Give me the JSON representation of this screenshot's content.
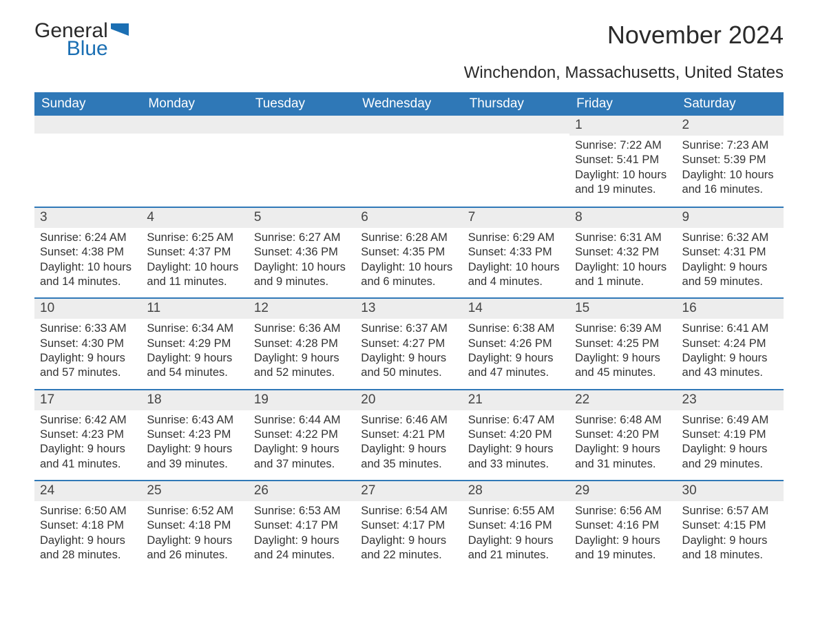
{
  "brand": {
    "name_part1": "General",
    "name_part2": "Blue",
    "logo_color": "#1b6fb3"
  },
  "title": "November 2024",
  "location": "Winchendon, Massachusetts, United States",
  "colors": {
    "header_bg": "#2f78b7",
    "header_text": "#ffffff",
    "row_border": "#2f78b7",
    "daynum_bg": "#ededed",
    "text": "#333333",
    "background": "#ffffff"
  },
  "typography": {
    "title_fontsize": 36,
    "location_fontsize": 24,
    "header_fontsize": 19,
    "daynum_fontsize": 19,
    "body_fontsize": 16.5
  },
  "day_headers": [
    "Sunday",
    "Monday",
    "Tuesday",
    "Wednesday",
    "Thursday",
    "Friday",
    "Saturday"
  ],
  "weeks": [
    [
      {
        "num": "",
        "sunrise": "",
        "sunset": "",
        "daylight": ""
      },
      {
        "num": "",
        "sunrise": "",
        "sunset": "",
        "daylight": ""
      },
      {
        "num": "",
        "sunrise": "",
        "sunset": "",
        "daylight": ""
      },
      {
        "num": "",
        "sunrise": "",
        "sunset": "",
        "daylight": ""
      },
      {
        "num": "",
        "sunrise": "",
        "sunset": "",
        "daylight": ""
      },
      {
        "num": "1",
        "sunrise": "Sunrise: 7:22 AM",
        "sunset": "Sunset: 5:41 PM",
        "daylight": "Daylight: 10 hours and 19 minutes."
      },
      {
        "num": "2",
        "sunrise": "Sunrise: 7:23 AM",
        "sunset": "Sunset: 5:39 PM",
        "daylight": "Daylight: 10 hours and 16 minutes."
      }
    ],
    [
      {
        "num": "3",
        "sunrise": "Sunrise: 6:24 AM",
        "sunset": "Sunset: 4:38 PM",
        "daylight": "Daylight: 10 hours and 14 minutes."
      },
      {
        "num": "4",
        "sunrise": "Sunrise: 6:25 AM",
        "sunset": "Sunset: 4:37 PM",
        "daylight": "Daylight: 10 hours and 11 minutes."
      },
      {
        "num": "5",
        "sunrise": "Sunrise: 6:27 AM",
        "sunset": "Sunset: 4:36 PM",
        "daylight": "Daylight: 10 hours and 9 minutes."
      },
      {
        "num": "6",
        "sunrise": "Sunrise: 6:28 AM",
        "sunset": "Sunset: 4:35 PM",
        "daylight": "Daylight: 10 hours and 6 minutes."
      },
      {
        "num": "7",
        "sunrise": "Sunrise: 6:29 AM",
        "sunset": "Sunset: 4:33 PM",
        "daylight": "Daylight: 10 hours and 4 minutes."
      },
      {
        "num": "8",
        "sunrise": "Sunrise: 6:31 AM",
        "sunset": "Sunset: 4:32 PM",
        "daylight": "Daylight: 10 hours and 1 minute."
      },
      {
        "num": "9",
        "sunrise": "Sunrise: 6:32 AM",
        "sunset": "Sunset: 4:31 PM",
        "daylight": "Daylight: 9 hours and 59 minutes."
      }
    ],
    [
      {
        "num": "10",
        "sunrise": "Sunrise: 6:33 AM",
        "sunset": "Sunset: 4:30 PM",
        "daylight": "Daylight: 9 hours and 57 minutes."
      },
      {
        "num": "11",
        "sunrise": "Sunrise: 6:34 AM",
        "sunset": "Sunset: 4:29 PM",
        "daylight": "Daylight: 9 hours and 54 minutes."
      },
      {
        "num": "12",
        "sunrise": "Sunrise: 6:36 AM",
        "sunset": "Sunset: 4:28 PM",
        "daylight": "Daylight: 9 hours and 52 minutes."
      },
      {
        "num": "13",
        "sunrise": "Sunrise: 6:37 AM",
        "sunset": "Sunset: 4:27 PM",
        "daylight": "Daylight: 9 hours and 50 minutes."
      },
      {
        "num": "14",
        "sunrise": "Sunrise: 6:38 AM",
        "sunset": "Sunset: 4:26 PM",
        "daylight": "Daylight: 9 hours and 47 minutes."
      },
      {
        "num": "15",
        "sunrise": "Sunrise: 6:39 AM",
        "sunset": "Sunset: 4:25 PM",
        "daylight": "Daylight: 9 hours and 45 minutes."
      },
      {
        "num": "16",
        "sunrise": "Sunrise: 6:41 AM",
        "sunset": "Sunset: 4:24 PM",
        "daylight": "Daylight: 9 hours and 43 minutes."
      }
    ],
    [
      {
        "num": "17",
        "sunrise": "Sunrise: 6:42 AM",
        "sunset": "Sunset: 4:23 PM",
        "daylight": "Daylight: 9 hours and 41 minutes."
      },
      {
        "num": "18",
        "sunrise": "Sunrise: 6:43 AM",
        "sunset": "Sunset: 4:23 PM",
        "daylight": "Daylight: 9 hours and 39 minutes."
      },
      {
        "num": "19",
        "sunrise": "Sunrise: 6:44 AM",
        "sunset": "Sunset: 4:22 PM",
        "daylight": "Daylight: 9 hours and 37 minutes."
      },
      {
        "num": "20",
        "sunrise": "Sunrise: 6:46 AM",
        "sunset": "Sunset: 4:21 PM",
        "daylight": "Daylight: 9 hours and 35 minutes."
      },
      {
        "num": "21",
        "sunrise": "Sunrise: 6:47 AM",
        "sunset": "Sunset: 4:20 PM",
        "daylight": "Daylight: 9 hours and 33 minutes."
      },
      {
        "num": "22",
        "sunrise": "Sunrise: 6:48 AM",
        "sunset": "Sunset: 4:20 PM",
        "daylight": "Daylight: 9 hours and 31 minutes."
      },
      {
        "num": "23",
        "sunrise": "Sunrise: 6:49 AM",
        "sunset": "Sunset: 4:19 PM",
        "daylight": "Daylight: 9 hours and 29 minutes."
      }
    ],
    [
      {
        "num": "24",
        "sunrise": "Sunrise: 6:50 AM",
        "sunset": "Sunset: 4:18 PM",
        "daylight": "Daylight: 9 hours and 28 minutes."
      },
      {
        "num": "25",
        "sunrise": "Sunrise: 6:52 AM",
        "sunset": "Sunset: 4:18 PM",
        "daylight": "Daylight: 9 hours and 26 minutes."
      },
      {
        "num": "26",
        "sunrise": "Sunrise: 6:53 AM",
        "sunset": "Sunset: 4:17 PM",
        "daylight": "Daylight: 9 hours and 24 minutes."
      },
      {
        "num": "27",
        "sunrise": "Sunrise: 6:54 AM",
        "sunset": "Sunset: 4:17 PM",
        "daylight": "Daylight: 9 hours and 22 minutes."
      },
      {
        "num": "28",
        "sunrise": "Sunrise: 6:55 AM",
        "sunset": "Sunset: 4:16 PM",
        "daylight": "Daylight: 9 hours and 21 minutes."
      },
      {
        "num": "29",
        "sunrise": "Sunrise: 6:56 AM",
        "sunset": "Sunset: 4:16 PM",
        "daylight": "Daylight: 9 hours and 19 minutes."
      },
      {
        "num": "30",
        "sunrise": "Sunrise: 6:57 AM",
        "sunset": "Sunset: 4:15 PM",
        "daylight": "Daylight: 9 hours and 18 minutes."
      }
    ]
  ]
}
